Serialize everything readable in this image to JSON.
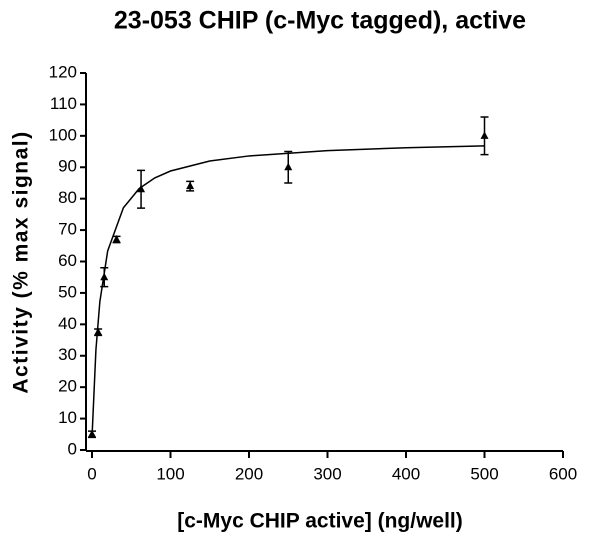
{
  "chart_data": {
    "type": "scatter",
    "title": "23-053 CHIP (c-Myc tagged), active",
    "x_label": "[c-Myc CHIP active] (ng/well)",
    "y_label": "Activity (% max signal)",
    "color": "#000000",
    "xlim": [
      0,
      600
    ],
    "xticks": [
      0,
      100,
      200,
      300,
      400,
      500,
      600
    ],
    "ylim": [
      0,
      120
    ],
    "yticks": [
      0,
      10,
      20,
      30,
      40,
      50,
      60,
      70,
      80,
      90,
      100,
      110,
      120
    ],
    "points": {
      "x": [
        0,
        7.8,
        15.6,
        31.25,
        62.5,
        125,
        250,
        500
      ],
      "values": [
        5,
        37.5,
        55,
        67,
        83,
        84,
        90,
        100
      ],
      "errors": [
        1,
        1,
        3,
        1,
        6,
        1.5,
        5,
        6
      ]
    },
    "fit": {
      "x": [
        0,
        5,
        10,
        20,
        40,
        60,
        80,
        100,
        150,
        200,
        300,
        400,
        500
      ],
      "values": [
        4,
        31.9,
        47.2,
        63.4,
        77.1,
        83.2,
        86.6,
        88.8,
        92,
        93.6,
        95.3,
        96.2,
        96.8
      ]
    }
  }
}
